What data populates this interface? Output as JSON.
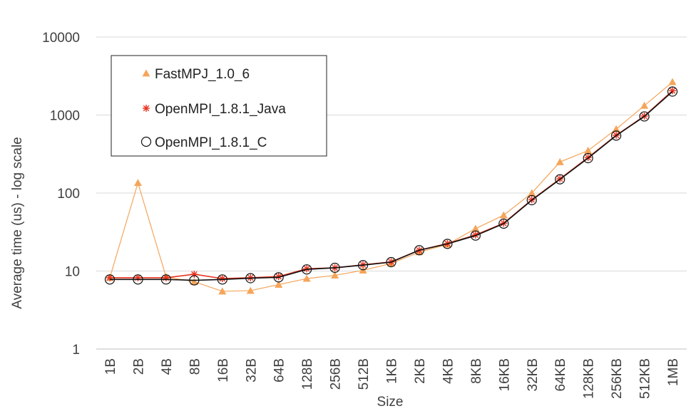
{
  "chart_data": {
    "type": "line",
    "title": "",
    "xlabel": "Size",
    "ylabel": "Average time (us) - log scale",
    "y_scale": "log",
    "ylim": [
      1,
      10000
    ],
    "y_ticks": [
      "1",
      "10",
      "100",
      "1000",
      "10000"
    ],
    "grid": "horizontal",
    "legend_position": "top-left",
    "categories": [
      "1B",
      "2B",
      "4B",
      "8B",
      "16B",
      "32B",
      "64B",
      "128B",
      "256B",
      "512B",
      "1KB",
      "2KB",
      "4KB",
      "8KB",
      "16KB",
      "32KB",
      "64KB",
      "128KB",
      "256KB",
      "512KB",
      "1MB"
    ],
    "series": [
      {
        "name": "FastMPJ_1.0_6",
        "color": "#f5a55a",
        "marker": "triangle",
        "values": [
          8.2,
          135,
          8.4,
          7.3,
          5.5,
          5.6,
          6.7,
          8.0,
          8.8,
          10.2,
          12.5,
          17.5,
          22,
          35,
          52,
          100,
          250,
          350,
          660,
          1320,
          2650
        ]
      },
      {
        "name": "OpenMPI_1.8.1_Java",
        "color": "#e8321e",
        "marker": "asterisk",
        "values": [
          8.2,
          8.2,
          8.2,
          9.1,
          8.0,
          8.2,
          8.5,
          10.7,
          11.0,
          12.0,
          13.1,
          18.5,
          22.5,
          29,
          41,
          82,
          152,
          285,
          550,
          970,
          2050
        ]
      },
      {
        "name": "OpenMPI_1.8.1_C",
        "color": "#111111",
        "marker": "circle",
        "values": [
          7.8,
          7.8,
          7.8,
          7.6,
          7.8,
          8.1,
          8.3,
          10.5,
          11.0,
          11.9,
          13.0,
          18.5,
          22.3,
          28.5,
          40.5,
          81,
          150,
          280,
          545,
          960,
          2000
        ]
      }
    ]
  }
}
